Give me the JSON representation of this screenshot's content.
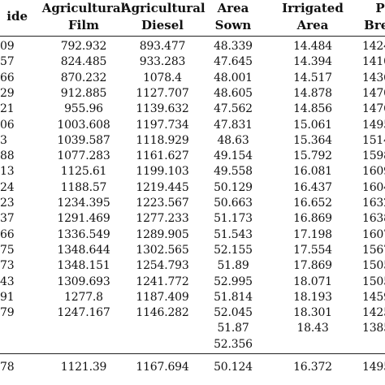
{
  "headers": {
    "c0": [
      "ide"
    ],
    "c1": [
      "Agricultural",
      "Film"
    ],
    "c2": [
      "Agricultural",
      "Diesel"
    ],
    "c3": [
      "Area",
      "Sown"
    ],
    "c4": [
      "Irrigated",
      "Area"
    ],
    "c5": [
      "P",
      "Bree"
    ]
  },
  "rows": [
    [
      "09",
      "792.932",
      "893.477",
      "48.339",
      "14.484",
      "1424"
    ],
    [
      "57",
      "824.485",
      "933.283",
      "47.645",
      "14.394",
      "1410"
    ],
    [
      "66",
      "870.232",
      "1078.4",
      "48.001",
      "14.517",
      "1436"
    ],
    [
      "29",
      "912.885",
      "1127.707",
      "48.605",
      "14.878",
      "1470"
    ],
    [
      "21",
      "955.96",
      "1139.632",
      "47.562",
      "14.856",
      "1476"
    ],
    [
      "06",
      "1003.608",
      "1197.734",
      "47.831",
      "15.061",
      "1495"
    ],
    [
      "3",
      "1039.587",
      "1118.929",
      "48.63",
      "15.364",
      "1514"
    ],
    [
      "88",
      "1077.283",
      "1161.627",
      "49.154",
      "15.792",
      "1598"
    ],
    [
      "13",
      "1125.61",
      "1199.103",
      "49.558",
      "16.081",
      "1609"
    ],
    [
      "24",
      "1188.57",
      "1219.445",
      "50.129",
      "16.437",
      "1604"
    ],
    [
      "23",
      "1234.395",
      "1223.567",
      "50.663",
      "16.652",
      "1632"
    ],
    [
      "37",
      "1291.469",
      "1277.233",
      "51.173",
      "16.869",
      "1638"
    ],
    [
      "66",
      "1336.549",
      "1289.905",
      "51.543",
      "17.198",
      "1607"
    ],
    [
      "75",
      "1348.644",
      "1302.565",
      "52.155",
      "17.554",
      "1567"
    ],
    [
      "73",
      "1348.151",
      "1254.793",
      "51.89",
      "17.869",
      "1505"
    ],
    [
      "43",
      "1309.693",
      "1241.772",
      "52.995",
      "18.071",
      "1505"
    ],
    [
      "91",
      "1277.8",
      "1187.409",
      "51.814",
      "18.193",
      "1459"
    ],
    [
      "79",
      "1247.167",
      "1146.282",
      "52.045",
      "18.301",
      "1425"
    ],
    [
      "",
      "",
      "",
      "51.87",
      "18.43",
      "1385"
    ],
    [
      "",
      "",
      "",
      "52.356",
      "",
      ""
    ],
    [
      "78",
      "1121.39",
      "1167.694",
      "50.124",
      "16.372",
      "1495"
    ]
  ]
}
